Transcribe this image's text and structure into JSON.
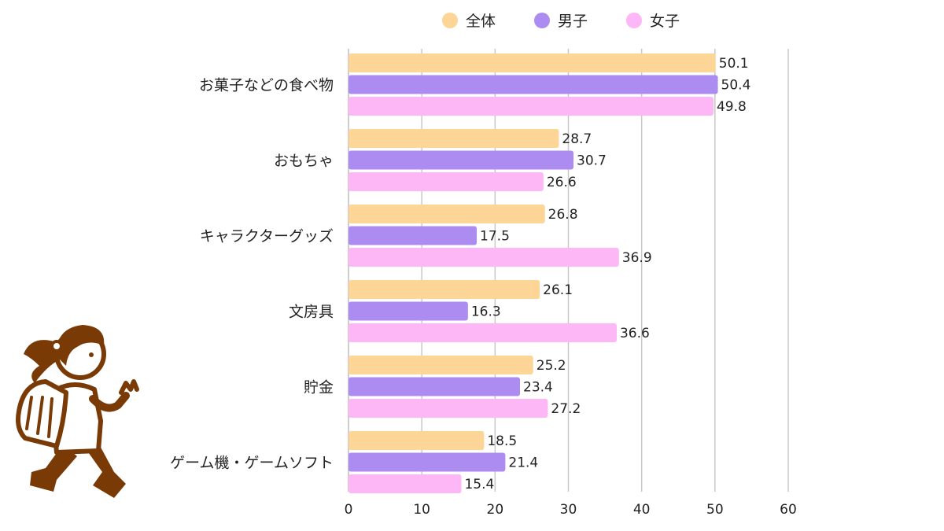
{
  "chart_data": {
    "type": "bar",
    "orientation": "horizontal",
    "categories": [
      "お菓子などの食べ物",
      "おもちゃ",
      "キャラクターグッズ",
      "文房具",
      "貯金",
      "ゲーム機・ゲームソフト"
    ],
    "series": [
      {
        "name": "全体",
        "color": "#FDD596",
        "values": [
          50.1,
          28.7,
          26.8,
          26.1,
          25.2,
          18.5
        ]
      },
      {
        "name": "男子",
        "color": "#AD8CF2",
        "values": [
          50.4,
          30.7,
          17.5,
          16.3,
          23.4,
          21.4
        ]
      },
      {
        "name": "女子",
        "color": "#FDB6F6",
        "values": [
          49.8,
          26.6,
          36.9,
          36.6,
          27.2,
          15.4
        ]
      }
    ],
    "xlim": [
      0,
      60
    ],
    "ticks": [
      0,
      10,
      20,
      30,
      40,
      50,
      60
    ],
    "grid": true,
    "legend_position": "top"
  },
  "colors": {
    "grid": "#C8C8C8",
    "axis": "#BDBDBD",
    "kid_outline": "#7A3A05",
    "kid_fill": "#FFFFFF"
  }
}
